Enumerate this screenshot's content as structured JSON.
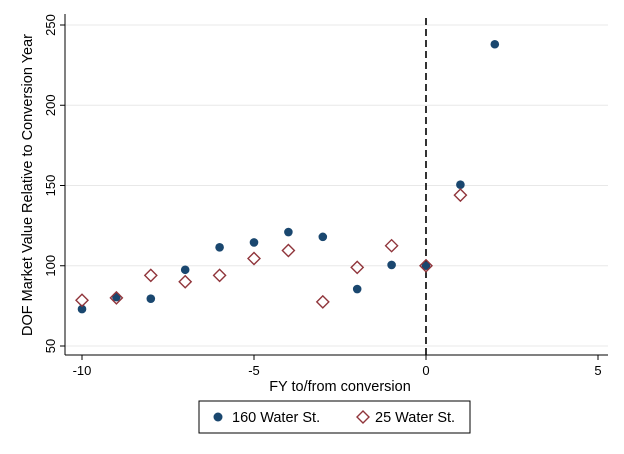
{
  "chart_data": {
    "type": "scatter",
    "title": "",
    "xlabel": "FY to/from conversion",
    "ylabel": "DOF Market Value Relative to Conversion Year",
    "xlim": [
      -10,
      5
    ],
    "ylim": [
      50,
      250
    ],
    "xticks": [
      -10,
      -5,
      0,
      5
    ],
    "yticks": [
      50,
      100,
      150,
      200,
      250
    ],
    "grid": "horizontal",
    "reference_line": {
      "x": 0,
      "style": "dashed"
    },
    "legend_position": "bottom-center",
    "series": [
      {
        "name": "160 Water St.",
        "marker": "filled-circle",
        "color": "#1a476f",
        "x": [
          -10,
          -9,
          -8,
          -7,
          -6,
          -5,
          -4,
          -3,
          -2,
          -1,
          0,
          1,
          2
        ],
        "y": [
          73,
          80.5,
          79.5,
          97.5,
          111.5,
          114.5,
          121,
          118,
          85.5,
          100.5,
          100,
          150.5,
          238
        ]
      },
      {
        "name": "25 Water St.",
        "marker": "hollow-diamond",
        "color": "#90353b",
        "x": [
          -10,
          -9,
          -8,
          -7,
          -6,
          -5,
          -4,
          -3,
          -2,
          -1,
          0,
          1
        ],
        "y": [
          78.5,
          80,
          94,
          90,
          94,
          104.5,
          109.5,
          77.5,
          99,
          112.5,
          100,
          144
        ]
      }
    ]
  }
}
